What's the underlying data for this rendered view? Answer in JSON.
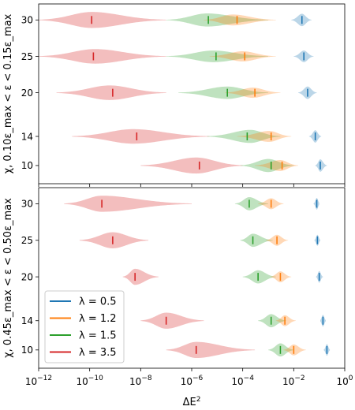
{
  "chart_data": {
    "type": "violin",
    "xlabel": "ΔE",
    "xlabel_sup": "2",
    "x_scale": "log",
    "xlim": [
      1e-12,
      1
    ],
    "x_ticks": [
      {
        "value": 1e-12,
        "base": "10",
        "exp": "−12"
      },
      {
        "value": 1e-10,
        "base": "10",
        "exp": "−10"
      },
      {
        "value": 1e-08,
        "base": "10",
        "exp": "−8"
      },
      {
        "value": 1e-06,
        "base": "10",
        "exp": "−6"
      },
      {
        "value": 0.0001,
        "base": "10",
        "exp": "−4"
      },
      {
        "value": 0.01,
        "base": "10",
        "exp": "−2"
      },
      {
        "value": 1,
        "base": "10",
        "exp": "0"
      }
    ],
    "legend": {
      "placement": "lower-left of bottom panel",
      "entries": [
        {
          "label": "λ = 0.5",
          "color": "#1f77b4"
        },
        {
          "label": "λ = 1.2",
          "color": "#ff7f0e"
        },
        {
          "label": "λ = 1.5",
          "color": "#2ca02c"
        },
        {
          "label": "λ = 3.5",
          "color": "#d62728"
        }
      ]
    },
    "panels": [
      {
        "ylabel": "χ, 0.10ε_max < ε < 0.15ε_max",
        "ylim": [
          7.5,
          32.2
        ],
        "y_ticks": [
          10,
          14,
          20,
          25,
          30
        ],
        "groups": [
          {
            "chi": 30,
            "violins": [
              {
                "lambda": 3.5,
                "min": 1e-12,
                "max": 1e-07,
                "median": 1.2e-10,
                "mode": 1.2e-10,
                "width": 2.2
              },
              {
                "lambda": 1.5,
                "min": 1e-07,
                "max": 0.001,
                "median": 4.5e-06,
                "mode": 4e-06,
                "width": 1.8
              },
              {
                "lambda": 1.2,
                "min": 3e-06,
                "max": 0.002,
                "median": 6e-05,
                "mode": 4e-05,
                "width": 1.5
              },
              {
                "lambda": 0.5,
                "min": 0.008,
                "max": 0.05,
                "median": 0.021,
                "mode": 0.021,
                "width": 1.7
              }
            ]
          },
          {
            "chi": 25,
            "violins": [
              {
                "lambda": 3.5,
                "min": 1e-12,
                "max": 1e-07,
                "median": 1.4e-10,
                "mode": 1.6e-10,
                "width": 2.0
              },
              {
                "lambda": 1.5,
                "min": 1e-07,
                "max": 0.001,
                "median": 9e-06,
                "mode": 7e-06,
                "width": 1.6
              },
              {
                "lambda": 1.2,
                "min": 5e-06,
                "max": 0.002,
                "median": 0.00012,
                "mode": 0.0001,
                "width": 1.4
              },
              {
                "lambda": 0.5,
                "min": 0.01,
                "max": 0.06,
                "median": 0.025,
                "mode": 0.025,
                "width": 1.6
              }
            ]
          },
          {
            "chi": 20,
            "violins": [
              {
                "lambda": 3.5,
                "min": 5e-12,
                "max": 1e-07,
                "median": 8e-10,
                "mode": 6e-10,
                "width": 2.0
              },
              {
                "lambda": 1.5,
                "min": 3e-07,
                "max": 0.001,
                "median": 2.5e-05,
                "mode": 2.5e-05,
                "width": 1.7
              },
              {
                "lambda": 1.2,
                "min": 2e-05,
                "max": 0.003,
                "median": 0.0003,
                "mode": 0.00025,
                "width": 1.4
              },
              {
                "lambda": 0.5,
                "min": 0.015,
                "max": 0.08,
                "median": 0.035,
                "mode": 0.035,
                "width": 1.7
              }
            ]
          },
          {
            "chi": 14,
            "violins": [
              {
                "lambda": 3.5,
                "min": 2e-11,
                "max": 5e-06,
                "median": 7e-09,
                "mode": 5e-09,
                "width": 2.0
              },
              {
                "lambda": 1.5,
                "min": 4e-06,
                "max": 0.003,
                "median": 0.00015,
                "mode": 0.0002,
                "width": 1.8
              },
              {
                "lambda": 1.2,
                "min": 6e-05,
                "max": 0.008,
                "median": 0.0013,
                "mode": 0.0011,
                "width": 1.5
              },
              {
                "lambda": 0.5,
                "min": 0.04,
                "max": 0.12,
                "median": 0.07,
                "mode": 0.07,
                "width": 1.7
              }
            ]
          },
          {
            "chi": 10,
            "violins": [
              {
                "lambda": 3.5,
                "min": 1e-08,
                "max": 0.0001,
                "median": 2e-06,
                "mode": 1.5e-06,
                "width": 2.2
              },
              {
                "lambda": 1.5,
                "min": 8e-05,
                "max": 0.01,
                "median": 0.0013,
                "mode": 0.001,
                "width": 1.8
              },
              {
                "lambda": 1.2,
                "min": 0.0003,
                "max": 0.015,
                "median": 0.0035,
                "mode": 0.003,
                "width": 1.5
              },
              {
                "lambda": 0.5,
                "min": 0.07,
                "max": 0.2,
                "median": 0.11,
                "mode": 0.11,
                "width": 1.7
              }
            ]
          }
        ]
      },
      {
        "ylabel": "χ, 0.45ε_max < ε < 0.50ε_max",
        "ylim": [
          7.5,
          32.2
        ],
        "y_ticks": [
          10,
          14,
          20,
          25,
          30
        ],
        "groups": [
          {
            "chi": 30,
            "violins": [
              {
                "lambda": 3.5,
                "min": 1e-11,
                "max": 1e-06,
                "median": 3e-10,
                "mode": 3e-10,
                "width": 2.2
              },
              {
                "lambda": 1.5,
                "min": 5e-05,
                "max": 0.001,
                "median": 0.00018,
                "mode": 0.00018,
                "width": 1.8
              },
              {
                "lambda": 1.2,
                "min": 0.0004,
                "max": 0.004,
                "median": 0.0013,
                "mode": 0.0013,
                "width": 1.5
              },
              {
                "lambda": 0.5,
                "min": 0.06,
                "max": 0.1,
                "median": 0.08,
                "mode": 0.08,
                "width": 1.6
              }
            ]
          },
          {
            "chi": 25,
            "violins": [
              {
                "lambda": 3.5,
                "min": 4e-11,
                "max": 2e-08,
                "median": 8e-10,
                "mode": 8e-10,
                "width": 2.2
              },
              {
                "lambda": 1.5,
                "min": 8e-05,
                "max": 0.0015,
                "median": 0.00025,
                "mode": 0.00025,
                "width": 1.8
              },
              {
                "lambda": 1.2,
                "min": 0.0008,
                "max": 0.006,
                "median": 0.0022,
                "mode": 0.0022,
                "width": 1.5
              },
              {
                "lambda": 0.5,
                "min": 0.065,
                "max": 0.11,
                "median": 0.085,
                "mode": 0.085,
                "width": 1.5
              }
            ]
          },
          {
            "chi": 20,
            "violins": [
              {
                "lambda": 3.5,
                "min": 2e-09,
                "max": 5e-08,
                "median": 6e-09,
                "mode": 6e-09,
                "width": 2.2
              },
              {
                "lambda": 1.5,
                "min": 0.0001,
                "max": 0.002,
                "median": 0.0004,
                "mode": 0.0004,
                "width": 1.8
              },
              {
                "lambda": 1.2,
                "min": 0.0012,
                "max": 0.008,
                "median": 0.003,
                "mode": 0.003,
                "width": 1.5
              },
              {
                "lambda": 0.5,
                "min": 0.075,
                "max": 0.14,
                "median": 0.1,
                "mode": 0.1,
                "width": 1.6
              }
            ]
          },
          {
            "chi": 14,
            "violins": [
              {
                "lambda": 3.5,
                "min": 1e-08,
                "max": 3e-06,
                "median": 1e-07,
                "mode": 1e-07,
                "width": 2.2
              },
              {
                "lambda": 1.5,
                "min": 0.0004,
                "max": 0.005,
                "median": 0.0013,
                "mode": 0.0013,
                "width": 1.8
              },
              {
                "lambda": 1.2,
                "min": 0.002,
                "max": 0.012,
                "median": 0.0045,
                "mode": 0.0045,
                "width": 1.5
              },
              {
                "lambda": 0.5,
                "min": 0.11,
                "max": 0.18,
                "median": 0.14,
                "mode": 0.14,
                "width": 1.6
              }
            ]
          },
          {
            "chi": 10,
            "violins": [
              {
                "lambda": 3.5,
                "min": 1e-07,
                "max": 0.0003,
                "median": 1.5e-06,
                "mode": 1.5e-06,
                "width": 2.2
              },
              {
                "lambda": 1.5,
                "min": 0.001,
                "max": 0.01,
                "median": 0.003,
                "mode": 0.003,
                "width": 1.8
              },
              {
                "lambda": 1.2,
                "min": 0.004,
                "max": 0.03,
                "median": 0.01,
                "mode": 0.01,
                "width": 1.5
              },
              {
                "lambda": 0.5,
                "min": 0.15,
                "max": 0.26,
                "median": 0.2,
                "mode": 0.2,
                "width": 1.6
              }
            ]
          }
        ]
      }
    ]
  }
}
